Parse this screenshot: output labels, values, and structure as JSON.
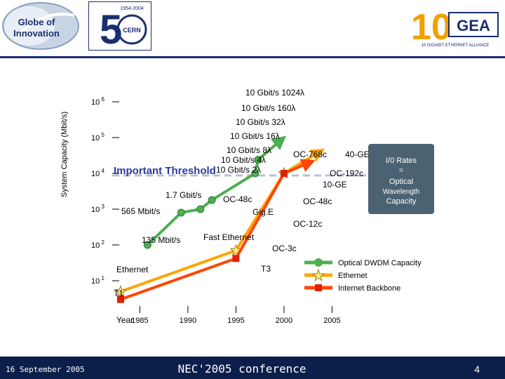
{
  "header": {
    "globe_logo_text": "Globe of Innovation",
    "cern_logo_text": "CERN",
    "cern_years": "1954-2004",
    "gea_logo_text": "10GEA",
    "gea_subtitle": "10 Gigabit Ethernet Alliance"
  },
  "footer": {
    "date": "16 September 2005",
    "title": "NEC'2005 conference",
    "page": "4"
  },
  "chart_data": {
    "type": "line",
    "title": "",
    "xlabel": "Year",
    "ylabel": "System Capacity (Mbit/s)",
    "yscale": "log",
    "xlim": [
      1983,
      2005
    ],
    "ylim_exponent": [
      1,
      6
    ],
    "x_ticks": [
      "1985",
      "1990",
      "1995",
      "2000",
      "2005"
    ],
    "y_ticks": [
      "10 1",
      "10 2",
      "10 3",
      "10 4",
      "10 5",
      "10 6"
    ],
    "series": [
      {
        "name": "Optical DWDM Capacity",
        "color": "#4caf50",
        "points": [
          [
            1985.8,
            100
          ],
          [
            1989.3,
            800
          ],
          [
            1991.3,
            1000
          ],
          [
            1992.5,
            1800
          ],
          [
            1997.0,
            10000
          ],
          [
            1997.3,
            24000
          ],
          [
            2000.0,
            100000
          ]
        ]
      },
      {
        "name": "Ethernet",
        "color": "#ffa500",
        "points": [
          [
            1983.0,
            5
          ],
          [
            1995.0,
            70
          ],
          [
            2000.0,
            10000
          ],
          [
            2004.0,
            45000
          ]
        ]
      },
      {
        "name": "Internet Backbone",
        "color": "#ff4500",
        "points": [
          [
            1983.0,
            3
          ],
          [
            1995.0,
            42
          ],
          [
            2000.0,
            10000
          ],
          [
            2003.0,
            22000
          ]
        ]
      }
    ],
    "annotations": [
      "10 Gbit/s 1024λ",
      "10 Gbit/s 160λ",
      "10 Gbit/s 32λ",
      "10 Gbit/s 16λ",
      "10 Gbit/s 8λ",
      "10 Gbit/s 4λ",
      "10 Gbit/s 2λ",
      "1.7 Gbit/s",
      "565 Mbit/s",
      "135 Mbit/s",
      "OC-768c",
      "40-GE",
      "OC-192c",
      "10-GE",
      "OC-48c",
      "OC-48c",
      "Gig.E",
      "OC-12c",
      "Fast Ethernet",
      "OC-3c",
      "T3",
      "Ethernet",
      "T1"
    ],
    "threshold_label": "Important Threshold",
    "io_note": [
      "I/0 Rates",
      "=",
      "Optical",
      "Wavelength",
      "Capacity"
    ],
    "legend": [
      "Optical DWDM Capacity",
      "Ethernet",
      "Internet Backbone"
    ]
  }
}
